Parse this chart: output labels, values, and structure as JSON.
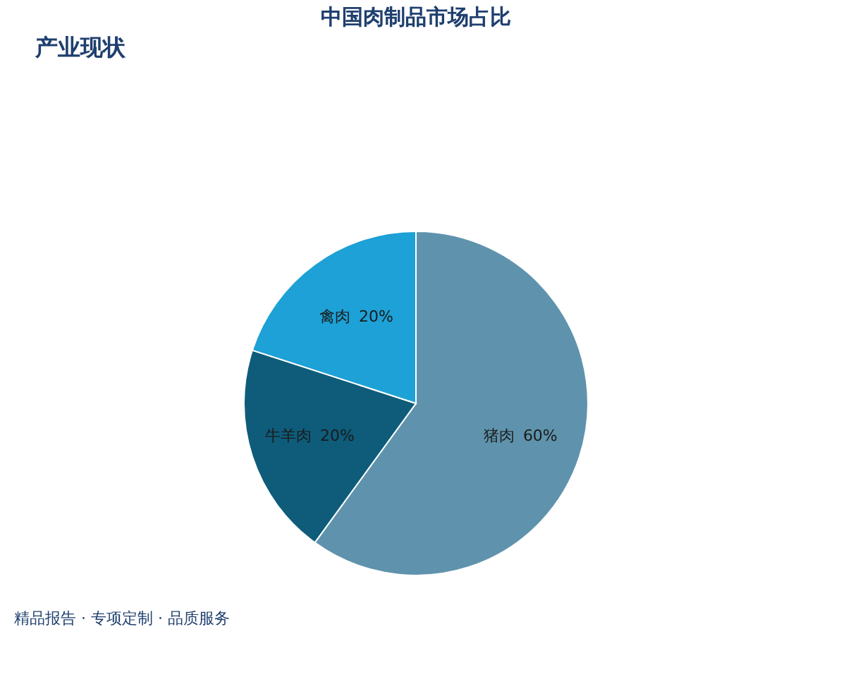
{
  "chart_data": {
    "type": "pie",
    "title": "中国肉制品市场占比",
    "subtitle": "产业现状",
    "categories": [
      "猪肉",
      "牛羊肉",
      "禽肉"
    ],
    "values": [
      60,
      20,
      20
    ],
    "colors": [
      "#5f93ad",
      "#0e5c7a",
      "#1da1d6"
    ],
    "value_labels": [
      "60%",
      "20%",
      "20%"
    ],
    "annotations": [
      "精品报告 · 专项定制 · 品质服务"
    ]
  }
}
